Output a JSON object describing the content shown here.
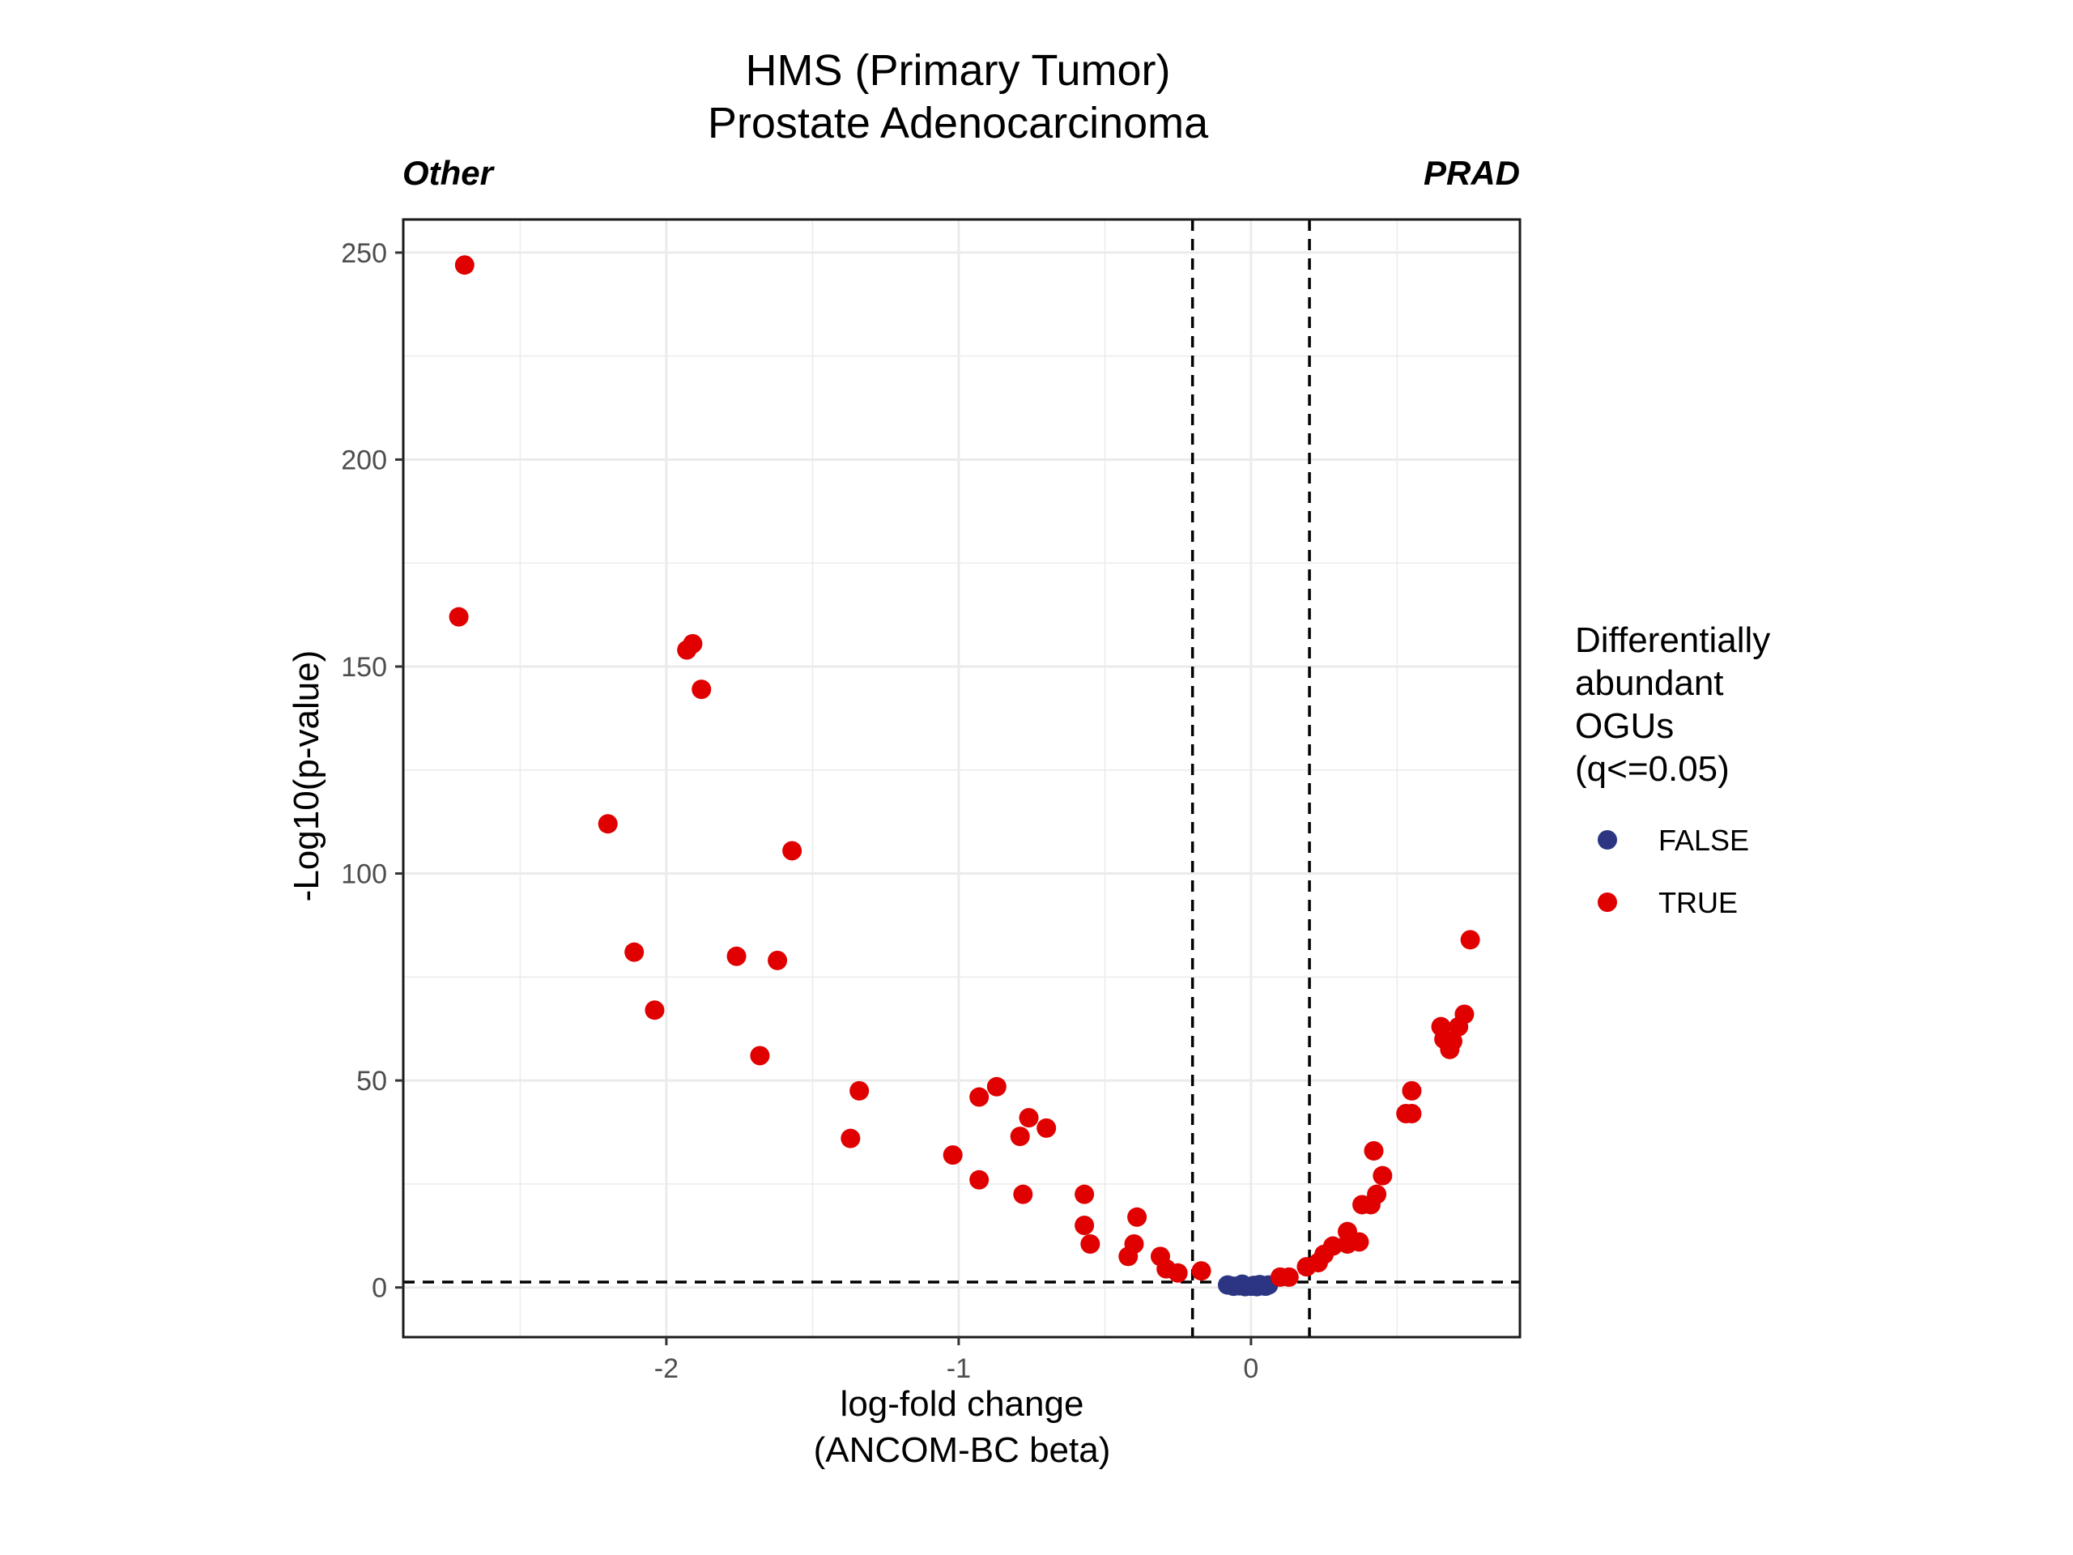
{
  "chart_data": {
    "type": "scatter",
    "title_lines": [
      "HMS (Primary Tumor)",
      "Prostate Adenocarcinoma"
    ],
    "corner_labels": {
      "left": "Other",
      "right": "PRAD"
    },
    "xlabel_lines": [
      "log-fold change",
      "(ANCOM-BC beta)"
    ],
    "ylabel": "-Log10(p-value)",
    "xlim": [
      -2.9,
      0.92
    ],
    "ylim": [
      -12,
      258
    ],
    "xticks": [
      -2,
      -1,
      0
    ],
    "xtick_labels": [
      "-2",
      "-1",
      "0"
    ],
    "yticks": [
      0,
      50,
      100,
      150,
      200,
      250
    ],
    "ytick_labels": [
      "0",
      "50",
      "100",
      "150",
      "200",
      "250"
    ],
    "grid": true,
    "reference_lines": {
      "vertical": [
        -0.2,
        0.2
      ],
      "horizontal": [
        1.3
      ]
    },
    "legend": {
      "position": "right",
      "title_lines": [
        "Differentially",
        "abundant",
        "OGUs",
        "(q<=0.05)"
      ]
    },
    "series": [
      {
        "name": "FALSE",
        "color": "#2b3582",
        "points": [
          [
            -0.08,
            0.6
          ],
          [
            -0.06,
            0.3
          ],
          [
            -0.04,
            0.4
          ],
          [
            -0.02,
            0.2
          ],
          [
            0.0,
            0.3
          ],
          [
            0.01,
            0.5
          ],
          [
            0.02,
            0.2
          ],
          [
            0.04,
            0.4
          ],
          [
            0.05,
            0.3
          ],
          [
            0.06,
            0.6
          ],
          [
            -0.03,
            0.8
          ],
          [
            0.03,
            0.7
          ]
        ]
      },
      {
        "name": "TRUE",
        "color": "#e00000",
        "points": [
          [
            -2.69,
            247
          ],
          [
            -2.71,
            162
          ],
          [
            -1.91,
            155.5
          ],
          [
            -1.93,
            154
          ],
          [
            -1.88,
            144.5
          ],
          [
            -2.2,
            112
          ],
          [
            -1.57,
            105.5
          ],
          [
            -2.11,
            81
          ],
          [
            -1.76,
            80
          ],
          [
            -1.62,
            79
          ],
          [
            -2.04,
            67
          ],
          [
            -1.68,
            56
          ],
          [
            -1.34,
            47.5
          ],
          [
            -1.37,
            36
          ],
          [
            -0.87,
            48.5
          ],
          [
            -0.93,
            46
          ],
          [
            -0.76,
            41
          ],
          [
            -0.7,
            38.5
          ],
          [
            -0.79,
            36.5
          ],
          [
            -1.02,
            32
          ],
          [
            -0.93,
            26
          ],
          [
            -0.78,
            22.5
          ],
          [
            -0.57,
            22.5
          ],
          [
            -0.39,
            17
          ],
          [
            -0.57,
            15
          ],
          [
            -0.55,
            10.5
          ],
          [
            -0.4,
            10.5
          ],
          [
            -0.42,
            7.5
          ],
          [
            -0.31,
            7.5
          ],
          [
            -0.29,
            4.5
          ],
          [
            -0.25,
            3.5
          ],
          [
            -0.17,
            4
          ],
          [
            0.1,
            2.5
          ],
          [
            0.13,
            2.5
          ],
          [
            0.19,
            5
          ],
          [
            0.23,
            6
          ],
          [
            0.25,
            8
          ],
          [
            0.28,
            10
          ],
          [
            0.33,
            10.5
          ],
          [
            0.33,
            13.5
          ],
          [
            0.37,
            11
          ],
          [
            0.38,
            20
          ],
          [
            0.41,
            20
          ],
          [
            0.43,
            22.5
          ],
          [
            0.45,
            27
          ],
          [
            0.42,
            33
          ],
          [
            0.53,
            42
          ],
          [
            0.55,
            42
          ],
          [
            0.55,
            47.5
          ],
          [
            0.65,
            63
          ],
          [
            0.66,
            60
          ],
          [
            0.68,
            57.5
          ],
          [
            0.69,
            59.5
          ],
          [
            0.71,
            63
          ],
          [
            0.73,
            66
          ],
          [
            0.75,
            84
          ]
        ]
      }
    ]
  }
}
